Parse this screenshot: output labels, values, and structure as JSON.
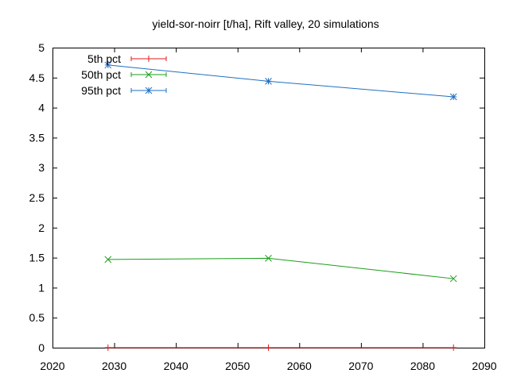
{
  "chart_data": {
    "type": "line",
    "title": "yield-sor-noirr [t/ha], Rift valley, 20 simulations",
    "xlabel": "",
    "ylabel": "",
    "xlim": [
      2020,
      2090
    ],
    "ylim": [
      0,
      5
    ],
    "xticks": [
      2020,
      2030,
      2040,
      2050,
      2060,
      2070,
      2080,
      2090
    ],
    "yticks": [
      0,
      0.5,
      1,
      1.5,
      2,
      2.5,
      3,
      3.5,
      4,
      4.5,
      5
    ],
    "ytick_labels": [
      "0",
      "0.5",
      "1",
      "1.5",
      "2",
      "2.5",
      "3",
      "3.5",
      "4",
      "4.5",
      "5"
    ],
    "grid": false,
    "legend_position": "top-left",
    "x": [
      2029,
      2055,
      2085
    ],
    "series": [
      {
        "name": "5th pct",
        "values": [
          0,
          0,
          0
        ],
        "color": "#e41a1c",
        "marker": "plus"
      },
      {
        "name": "50th pct",
        "values": [
          1.47,
          1.49,
          1.15
        ],
        "color": "#1a9e1a",
        "marker": "cross"
      },
      {
        "name": "95th pct",
        "values": [
          4.71,
          4.44,
          4.18
        ],
        "color": "#1f6fc4",
        "marker": "star"
      }
    ]
  }
}
